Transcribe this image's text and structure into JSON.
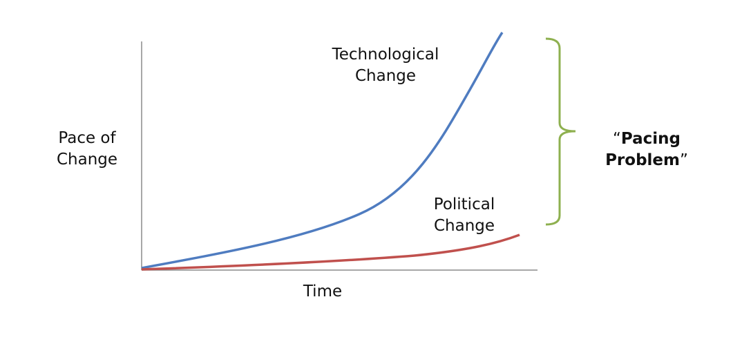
{
  "y_axis_label": [
    "Pace of",
    "Change"
  ],
  "x_axis_label": "Time",
  "curves": [
    {
      "label": [
        "Technological",
        "Change"
      ]
    },
    {
      "label": [
        "Political",
        "Change"
      ]
    }
  ],
  "bracket_label": {
    "open_quote": "“",
    "lines": [
      "Pacing",
      "Problem"
    ],
    "close_quote": "”"
  }
}
